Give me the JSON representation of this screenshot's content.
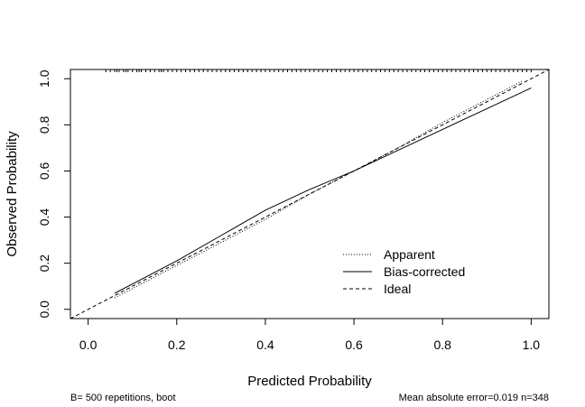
{
  "chart_data": {
    "type": "line",
    "title": "",
    "xlabel": "Predicted Probability",
    "ylabel": "Observed Probability",
    "xlim": [
      -0.04,
      1.04
    ],
    "ylim": [
      -0.04,
      1.04
    ],
    "x_ticks": [
      "0.0",
      "0.2",
      "0.4",
      "0.6",
      "0.8",
      "1.0"
    ],
    "y_ticks": [
      "0.0",
      "0.2",
      "0.4",
      "0.6",
      "0.8",
      "1.0"
    ],
    "x_tick_values": [
      0.0,
      0.2,
      0.4,
      0.6,
      0.8,
      1.0
    ],
    "y_tick_values": [
      0.0,
      0.2,
      0.4,
      0.6,
      0.8,
      1.0
    ],
    "legend_position": "bottom-right",
    "series": [
      {
        "name": "Apparent",
        "style": "dotted",
        "x": [
          0.06,
          0.1,
          0.2,
          0.3,
          0.4,
          0.5,
          0.6,
          0.7,
          0.8,
          0.9,
          0.98
        ],
        "y": [
          0.05,
          0.09,
          0.19,
          0.29,
          0.39,
          0.5,
          0.6,
          0.7,
          0.81,
          0.91,
          0.99
        ]
      },
      {
        "name": "Bias-corrected",
        "style": "solid",
        "x": [
          0.06,
          0.1,
          0.2,
          0.3,
          0.4,
          0.5,
          0.6,
          0.7,
          0.8,
          0.9,
          1.0
        ],
        "y": [
          0.07,
          0.11,
          0.21,
          0.32,
          0.43,
          0.52,
          0.6,
          0.69,
          0.78,
          0.87,
          0.96
        ]
      },
      {
        "name": "Ideal",
        "style": "dashed",
        "x": [
          -0.04,
          1.04
        ],
        "y": [
          -0.04,
          1.04
        ]
      }
    ],
    "rug_x": [
      0.04,
      0.05,
      0.06,
      0.065,
      0.07,
      0.08,
      0.085,
      0.09,
      0.1,
      0.11,
      0.115,
      0.12,
      0.13,
      0.14,
      0.15,
      0.16,
      0.165,
      0.17,
      0.18,
      0.19,
      0.2,
      0.21,
      0.22,
      0.23,
      0.24,
      0.25,
      0.26,
      0.27,
      0.28,
      0.29,
      0.3,
      0.31,
      0.32,
      0.33,
      0.34,
      0.35,
      0.36,
      0.37,
      0.38,
      0.39,
      0.4,
      0.41,
      0.42,
      0.43,
      0.44,
      0.45,
      0.46,
      0.47,
      0.48,
      0.49,
      0.5,
      0.51,
      0.52,
      0.53,
      0.54,
      0.55,
      0.56,
      0.57,
      0.58,
      0.59,
      0.6,
      0.61,
      0.62,
      0.63,
      0.64,
      0.65,
      0.66,
      0.67,
      0.68,
      0.69,
      0.7,
      0.71,
      0.72,
      0.73,
      0.74,
      0.75,
      0.76,
      0.77,
      0.78,
      0.79,
      0.8,
      0.81,
      0.82,
      0.83,
      0.84,
      0.85,
      0.86,
      0.87,
      0.88,
      0.89,
      0.9,
      0.91,
      0.92,
      0.93,
      0.94,
      0.95,
      0.96,
      0.97,
      0.98,
      0.99,
      1.0
    ],
    "footnote_left": "B= 500 repetitions, boot",
    "footnote_right": "Mean absolute error=0.019 n=348"
  }
}
